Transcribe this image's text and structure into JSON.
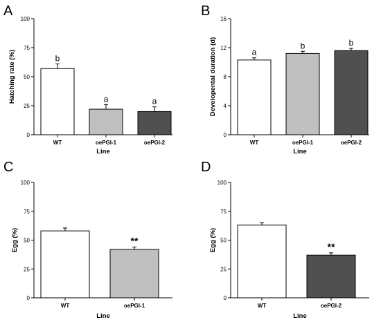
{
  "chart_data": [
    {
      "panel": "A",
      "type": "bar",
      "categories": [
        "WT",
        "oePGI-1",
        "oePGI-2"
      ],
      "values": [
        57,
        22,
        20
      ],
      "errors": [
        4,
        4,
        4
      ],
      "annotations": [
        "b",
        "a",
        "a"
      ],
      "colors": [
        "#ffffff",
        "#c0c0c0",
        "#505050"
      ],
      "xlabel": "Line",
      "ylabel": "Hatching rate (%)",
      "ylim": [
        0,
        100
      ],
      "yticks": [
        0,
        25,
        50,
        75,
        100
      ]
    },
    {
      "panel": "B",
      "type": "bar",
      "categories": [
        "WT",
        "oePGI-1",
        "oePGI-2"
      ],
      "values": [
        10.3,
        11.2,
        11.6
      ],
      "errors": [
        0.3,
        0.3,
        0.3
      ],
      "annotations": [
        "a",
        "b",
        "b"
      ],
      "colors": [
        "#ffffff",
        "#c0c0c0",
        "#505050"
      ],
      "xlabel": "Line",
      "ylabel": "Developental duration (d)",
      "ylim": [
        0,
        16
      ],
      "yticks": [
        0,
        4,
        8,
        12,
        16
      ]
    },
    {
      "panel": "C",
      "type": "bar",
      "categories": [
        "WT",
        "oePGI-1"
      ],
      "values": [
        58,
        42
      ],
      "errors": [
        2.5,
        2
      ],
      "annotations": [
        "",
        "**"
      ],
      "colors": [
        "#ffffff",
        "#c0c0c0"
      ],
      "xlabel": "Line",
      "ylabel": "Egg (%)",
      "ylim": [
        0,
        100
      ],
      "yticks": [
        0,
        25,
        50,
        75,
        100
      ]
    },
    {
      "panel": "D",
      "type": "bar",
      "categories": [
        "WT",
        "oePGI-2"
      ],
      "values": [
        63,
        37
      ],
      "errors": [
        2,
        2
      ],
      "annotations": [
        "",
        "**"
      ],
      "colors": [
        "#ffffff",
        "#505050"
      ],
      "xlabel": "Line",
      "ylabel": "Egg (%)",
      "ylim": [
        0,
        100
      ],
      "yticks": [
        0,
        25,
        50,
        75,
        100
      ]
    }
  ]
}
